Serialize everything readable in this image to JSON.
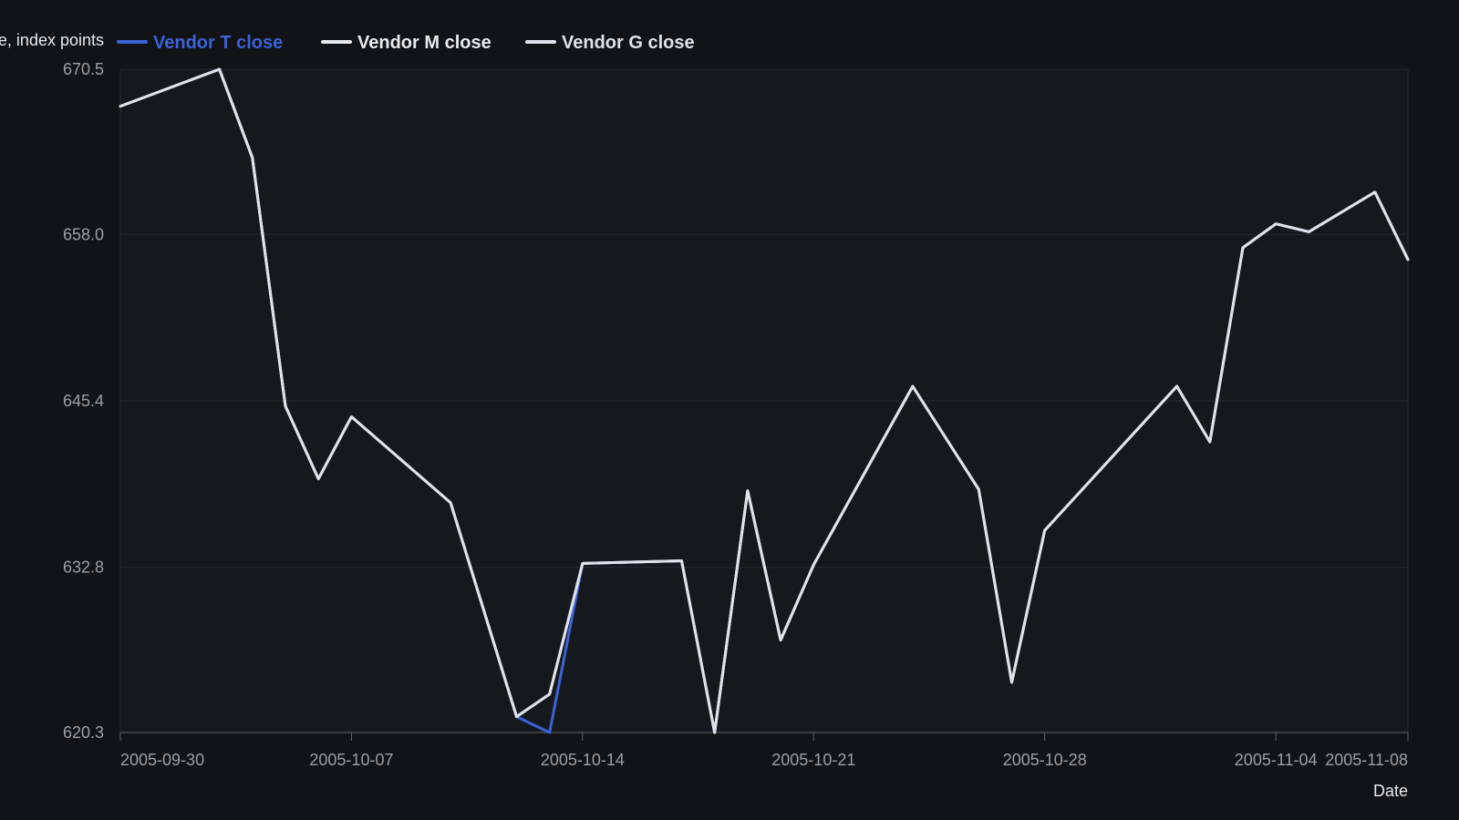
{
  "chart_data": {
    "type": "line",
    "title": "",
    "xlabel": "Date",
    "ylabel": "e, index points",
    "ylim": [
      620.3,
      670.5
    ],
    "yticks": [
      "620.3",
      "632.8",
      "645.4",
      "658.0",
      "670.5"
    ],
    "xticks": [
      "2005-09-30",
      "2005-10-07",
      "2005-10-14",
      "2005-10-21",
      "2005-10-28",
      "2005-11-04",
      "2005-11-08"
    ],
    "grid": true,
    "legend_position": "top-left",
    "x": [
      "2005-09-30",
      "2005-10-03",
      "2005-10-04",
      "2005-10-05",
      "2005-10-06",
      "2005-10-07",
      "2005-10-10",
      "2005-10-12",
      "2005-10-13",
      "2005-10-14",
      "2005-10-17",
      "2005-10-18",
      "2005-10-19",
      "2005-10-20",
      "2005-10-21",
      "2005-10-24",
      "2005-10-26",
      "2005-10-27",
      "2005-10-28",
      "2005-11-01",
      "2005-11-02",
      "2005-11-03",
      "2005-11-04",
      "2005-11-05",
      "2005-11-07",
      "2005-11-08"
    ],
    "series": [
      {
        "name": "Vendor T close",
        "color": "#3b63d6",
        "values": [
          667.7,
          670.5,
          663.8,
          645.0,
          639.5,
          644.2,
          637.7,
          621.5,
          620.3,
          633.1,
          633.3,
          620.3,
          638.6,
          627.3,
          633.0,
          646.5,
          638.7,
          624.1,
          635.6,
          646.5,
          642.3,
          657.0,
          658.8,
          658.2,
          661.2,
          656.1
        ]
      },
      {
        "name": "Vendor M close",
        "color": "#e8eaed",
        "values": [
          667.7,
          670.5,
          663.8,
          645.0,
          639.5,
          644.2,
          637.7,
          621.5,
          623.2,
          633.1,
          633.3,
          620.3,
          638.6,
          627.3,
          633.0,
          646.5,
          638.7,
          624.1,
          635.6,
          646.5,
          642.3,
          657.0,
          658.8,
          658.2,
          661.2,
          656.1
        ]
      },
      {
        "name": "Vendor G close",
        "color": "#dfe2ea",
        "values": [
          667.7,
          670.5,
          663.8,
          645.0,
          639.5,
          644.2,
          637.7,
          621.5,
          623.2,
          633.1,
          633.3,
          620.3,
          638.6,
          627.3,
          633.0,
          646.5,
          638.7,
          624.1,
          635.6,
          646.5,
          642.3,
          657.0,
          658.8,
          658.2,
          661.2,
          656.1
        ]
      }
    ]
  }
}
